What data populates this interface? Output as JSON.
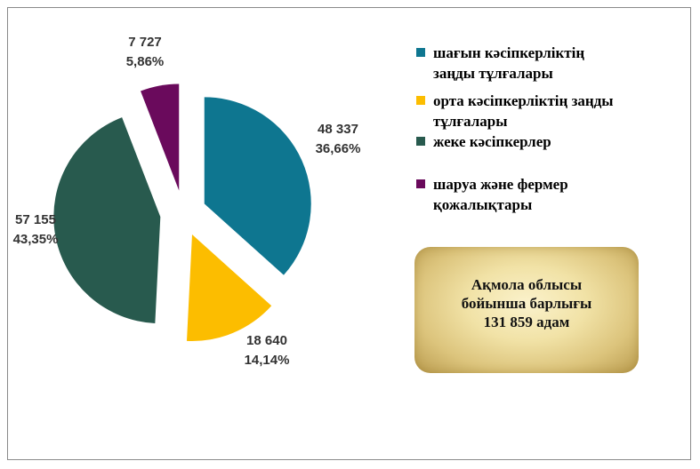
{
  "chart_data": {
    "type": "pie",
    "title": "",
    "slices": [
      {
        "name": "шағын кәсіпкерліктің заңды тұлғалары",
        "value": 48337,
        "value_label": "48 337",
        "percent_label": "36,66%",
        "color": "#0e7690"
      },
      {
        "name": "орта кәсіпкерліктің заңды тұлғалары",
        "value": 18640,
        "value_label": "18 640",
        "percent_label": "14,14%",
        "color": "#fcbd00"
      },
      {
        "name": "жеке кәсіпкерлер",
        "value": 57155,
        "value_label": "57 155",
        "percent_label": "43,35%",
        "color": "#285a4e"
      },
      {
        "name": "шаруа және фермер қожалықтары",
        "value": 7727,
        "value_label": "7 727",
        "percent_label": "5,86%",
        "color": "#6a0a5c"
      }
    ],
    "exploded": true,
    "legend_position": "right"
  },
  "legend": {
    "items": [
      {
        "lines": [
          "шағын кәсіпкерліктің",
          "заңды тұлғалары"
        ],
        "color": "#0e7690"
      },
      {
        "lines": [
          "орта кәсіпкерліктің заңды",
          "тұлғалары"
        ],
        "color": "#fcbd00"
      },
      {
        "lines": [
          "жеке кәсіпкерлер"
        ],
        "color": "#285a4e"
      },
      {
        "lines": [
          "шаруа және фермер",
          "қожалықтары"
        ],
        "color": "#6a0a5c"
      }
    ]
  },
  "total_box": {
    "line1": "Ақмола облысы",
    "line2": "бойынша барлығы",
    "line3": "131 859 адам"
  }
}
